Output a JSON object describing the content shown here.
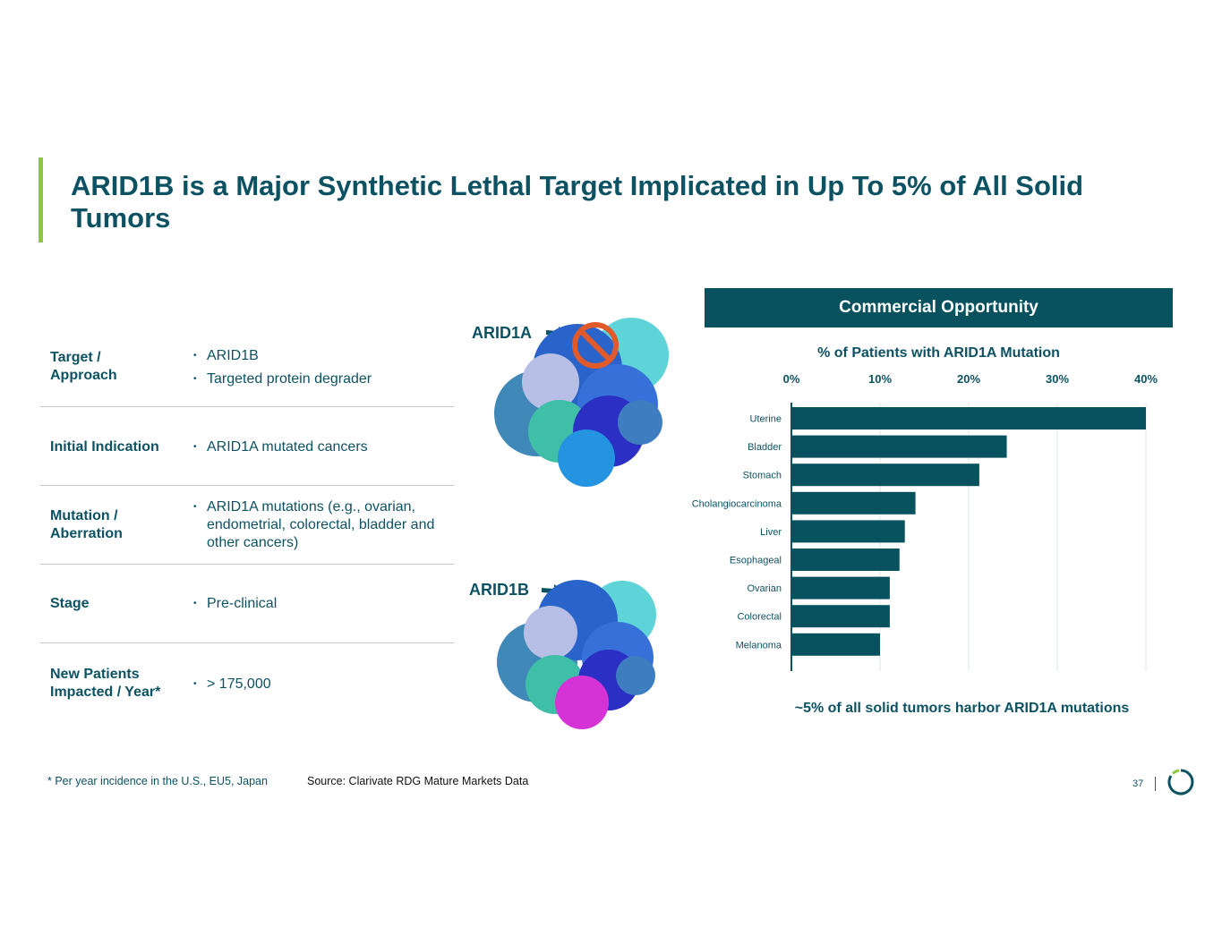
{
  "title": "ARID1B is a Major Synthetic Lethal Target Implicated in Up To 5% of All Solid Tumors",
  "table": [
    {
      "label": "Target / Approach",
      "values": [
        "ARID1B",
        "Targeted protein degrader"
      ]
    },
    {
      "label": "Initial Indication",
      "values": [
        "ARID1A mutated cancers"
      ]
    },
    {
      "label": "Mutation / Aberration",
      "values": [
        "ARID1A mutations (e.g., ovarian, endometrial, colorectal, bladder and other cancers)"
      ]
    },
    {
      "label": "Stage",
      "values": [
        "Pre-clinical"
      ]
    },
    {
      "label": "New Patients Impacted / Year*",
      "values": [
        "> 175,000"
      ]
    }
  ],
  "proteins": {
    "top_label": "ARID1A",
    "bottom_label": "ARID1B"
  },
  "panel": {
    "header": "Commercial Opportunity",
    "note": "~5% of all solid tumors harbor ARID1A mutations"
  },
  "chart_data": {
    "type": "bar",
    "orientation": "horizontal",
    "title": "% of Patients with ARID1A Mutation",
    "categories": [
      "Uterine",
      "Bladder",
      "Stomach",
      "Cholangiocarcinoma",
      "Liver",
      "Esophageal",
      "Ovarian",
      "Colorectal",
      "Melanoma"
    ],
    "values": [
      40,
      24.3,
      21.2,
      14,
      12.8,
      12.2,
      11.1,
      11.1,
      10
    ],
    "xticks": [
      "0%",
      "10%",
      "20%",
      "30%",
      "40%"
    ],
    "xlim": [
      0,
      40
    ],
    "axis_position": "top",
    "grid": true,
    "bar_color": "#07525e"
  },
  "footnote": "* Per year incidence in the U.S., EU5, Japan",
  "source": "Source: Clarivate RDG Mature Markets Data",
  "page_number": "37",
  "colors": {
    "primary": "#07525e",
    "accent": "#8dc63f",
    "prohibit": "#e05a2b"
  }
}
